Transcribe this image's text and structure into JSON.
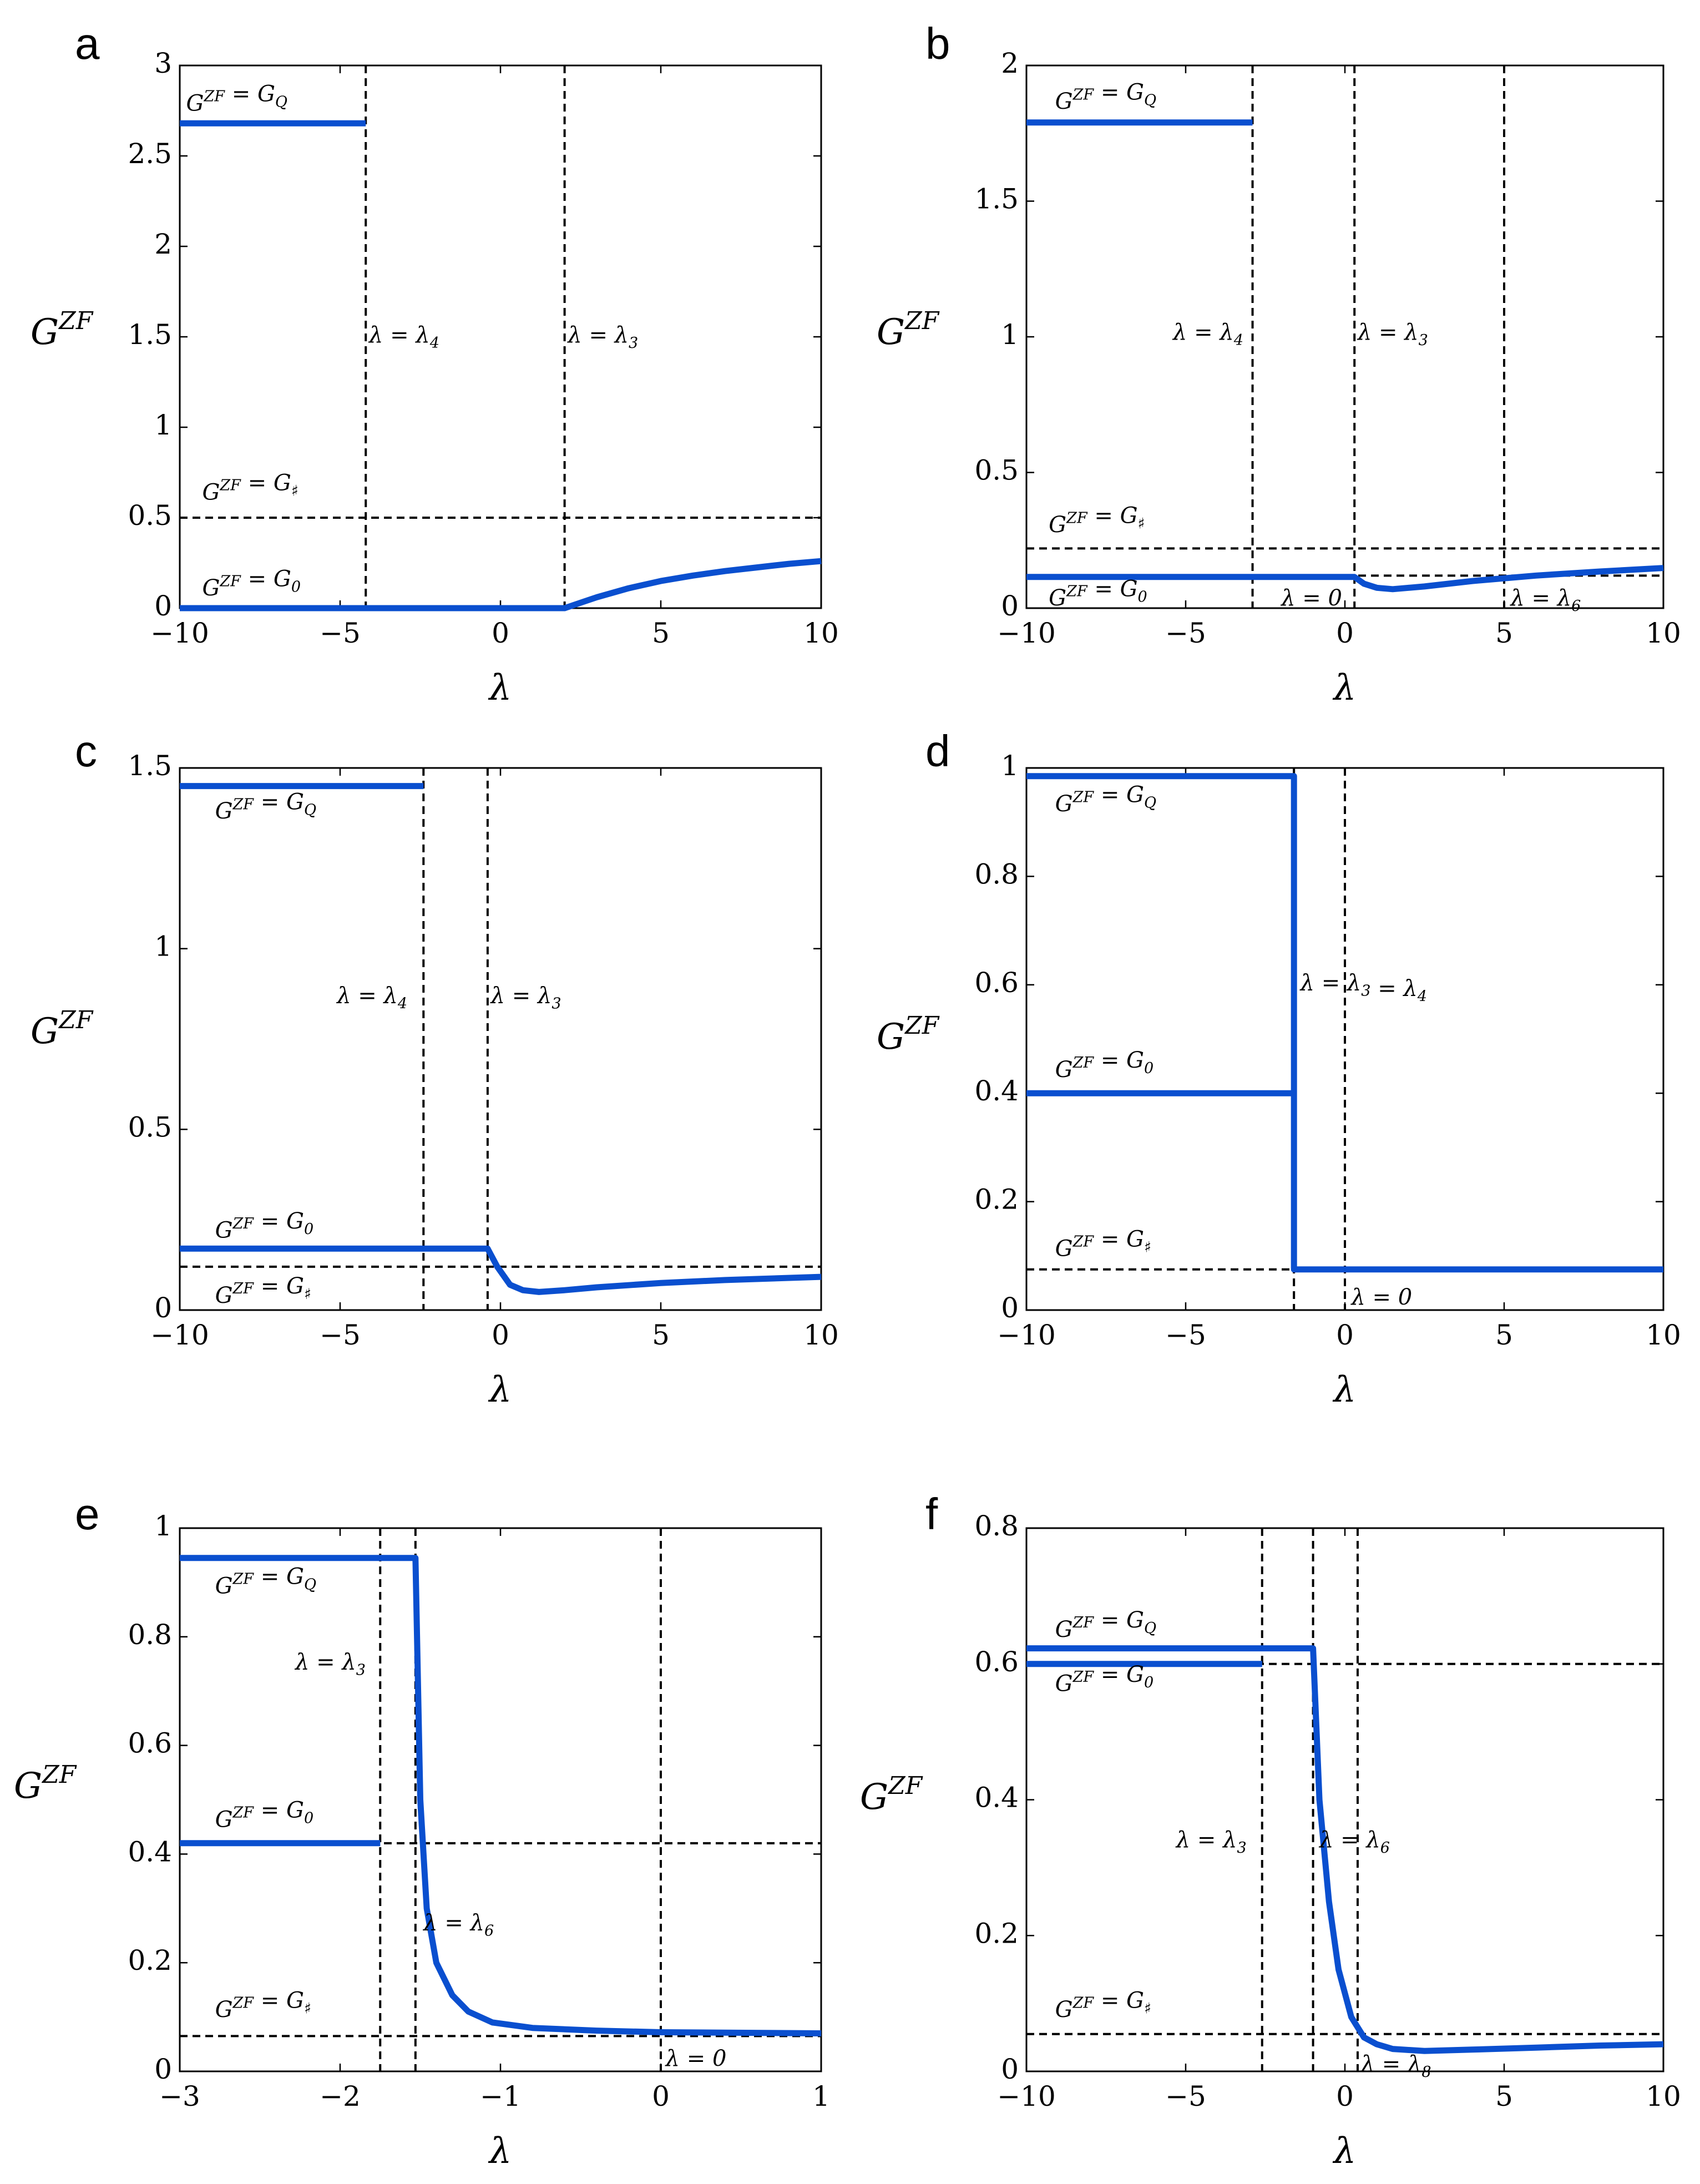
{
  "figure": {
    "accent_color": "#0a4fcf"
  },
  "chart_data": [
    {
      "panel": "a",
      "type": "line",
      "xlabel": "λ",
      "ylabel": "G^ZF",
      "xlim": [
        -10,
        10
      ],
      "ylim": [
        0,
        3
      ],
      "xticks": [
        -10,
        -5,
        0,
        5,
        10
      ],
      "yticks": [
        0,
        0.5,
        1,
        1.5,
        2,
        2.5,
        3
      ],
      "series": [
        {
          "points": [
            [
              -10,
              2.68
            ],
            [
              -4.2,
              2.68
            ]
          ]
        },
        {
          "points": [
            [
              -10,
              0
            ],
            [
              2,
              0
            ],
            [
              2.5,
              0.03
            ],
            [
              3,
              0.06
            ],
            [
              4,
              0.11
            ],
            [
              5,
              0.15
            ],
            [
              6,
              0.18
            ],
            [
              7,
              0.205
            ],
            [
              8,
              0.225
            ],
            [
              9,
              0.245
            ],
            [
              10,
              0.26
            ]
          ]
        }
      ],
      "hlines": [
        0.5
      ],
      "vlines": [
        -4.2,
        2
      ],
      "annotations": [
        {
          "text": "G^ZF = G_Q",
          "x": -9.8,
          "y": 2.75
        },
        {
          "text": "G^ZF = G_♯",
          "x": -9.3,
          "y": 0.6
        },
        {
          "text": "G^ZF = G_0",
          "x": -9.3,
          "y": 0.07
        },
        {
          "text": "λ = λ_4",
          "x": -4.1,
          "y": 1.47
        },
        {
          "text": "λ = λ_3",
          "x": 2.1,
          "y": 1.47
        }
      ]
    },
    {
      "panel": "b",
      "type": "line",
      "xlabel": "λ",
      "ylabel": "G^ZF",
      "xlim": [
        -10,
        10
      ],
      "ylim": [
        0,
        2
      ],
      "xticks": [
        -10,
        -5,
        0,
        5,
        10
      ],
      "yticks": [
        0,
        0.5,
        1,
        1.5,
        2
      ],
      "series": [
        {
          "points": [
            [
              -10,
              1.79
            ],
            [
              -2.9,
              1.79
            ]
          ]
        },
        {
          "points": [
            [
              -10,
              0.115
            ],
            [
              0.3,
              0.115
            ],
            [
              0.6,
              0.09
            ],
            [
              1,
              0.075
            ],
            [
              1.5,
              0.07
            ],
            [
              2.5,
              0.08
            ],
            [
              4,
              0.1
            ],
            [
              6,
              0.12
            ],
            [
              8,
              0.135
            ],
            [
              10,
              0.148
            ]
          ]
        }
      ],
      "hlines": [
        0.22,
        0.12
      ],
      "vlines": [
        -2.9,
        0.3,
        5
      ],
      "annotations": [
        {
          "text": "G^ZF = G_Q",
          "x": -9.1,
          "y": 1.84
        },
        {
          "text": "G^ZF = G_♯",
          "x": -9.3,
          "y": 0.28
        },
        {
          "text": "G^ZF = G_0",
          "x": -9.3,
          "y": 0.01
        },
        {
          "text": "λ = λ_4",
          "x": -5.4,
          "y": 0.99
        },
        {
          "text": "λ = λ_3",
          "x": 0.4,
          "y": 0.99
        },
        {
          "text": "λ = 0",
          "x": -2,
          "y": 0.01
        },
        {
          "text": "λ = λ_6",
          "x": 5.2,
          "y": 0.01
        }
      ]
    },
    {
      "panel": "c",
      "type": "line",
      "xlabel": "λ",
      "ylabel": "G^ZF",
      "xlim": [
        -10,
        10
      ],
      "ylim": [
        0,
        1.5
      ],
      "xticks": [
        -10,
        -5,
        0,
        5,
        10
      ],
      "yticks": [
        0,
        0.5,
        1,
        1.5
      ],
      "series": [
        {
          "points": [
            [
              -10,
              1.45
            ],
            [
              -2.4,
              1.45
            ]
          ]
        },
        {
          "points": [
            [
              -10,
              0.17
            ],
            [
              -0.4,
              0.17
            ],
            [
              -0.1,
              0.12
            ],
            [
              0.3,
              0.07
            ],
            [
              0.7,
              0.055
            ],
            [
              1.2,
              0.05
            ],
            [
              2,
              0.055
            ],
            [
              3,
              0.063
            ],
            [
              5,
              0.075
            ],
            [
              7,
              0.083
            ],
            [
              10,
              0.092
            ]
          ]
        }
      ],
      "hlines": [
        0.12
      ],
      "vlines": [
        -2.4,
        -0.4
      ],
      "annotations": [
        {
          "text": "G^ZF = G_Q",
          "x": -8.9,
          "y": 1.36
        },
        {
          "text": "G^ZF = G_0",
          "x": -8.9,
          "y": 0.2
        },
        {
          "text": "G^ZF = G_♯",
          "x": -8.9,
          "y": 0.02
        },
        {
          "text": "λ = λ_4",
          "x": -5.1,
          "y": 0.85
        },
        {
          "text": "λ = λ_3",
          "x": -0.3,
          "y": 0.85
        }
      ]
    },
    {
      "panel": "d",
      "type": "line",
      "xlabel": "λ",
      "ylabel": "G^ZF",
      "xlim": [
        -10,
        10
      ],
      "ylim": [
        0,
        1
      ],
      "xticks": [
        -10,
        -5,
        0,
        5,
        10
      ],
      "yticks": [
        0,
        0.2,
        0.4,
        0.6,
        0.8,
        1
      ],
      "series": [
        {
          "points": [
            [
              -10,
              0.985
            ],
            [
              -1.6,
              0.985
            ],
            [
              -1.6,
              0.075
            ],
            [
              10,
              0.075
            ]
          ]
        },
        {
          "points": [
            [
              -10,
              0.4
            ],
            [
              -1.6,
              0.4
            ]
          ]
        }
      ],
      "hlines": [
        0.075
      ],
      "vlines": [
        -1.6,
        0
      ],
      "annotations": [
        {
          "text": "G^ZF = G_Q",
          "x": -9.1,
          "y": 0.92
        },
        {
          "text": "λ = λ_3 = λ_4",
          "x": -1.4,
          "y": 0.59
        },
        {
          "text": "G^ZF = G_0",
          "x": -9.1,
          "y": 0.43
        },
        {
          "text": "G^ZF = G_♯",
          "x": -9.1,
          "y": 0.1
        },
        {
          "text": "λ = 0",
          "x": 0.2,
          "y": 0.01
        }
      ]
    },
    {
      "panel": "e",
      "type": "line",
      "xlabel": "λ",
      "ylabel": "G^ZF",
      "xlim": [
        -3,
        1
      ],
      "ylim": [
        0,
        1
      ],
      "xticks": [
        -3,
        -2,
        -1,
        0,
        1
      ],
      "yticks": [
        0,
        0.2,
        0.4,
        0.6,
        0.8,
        1
      ],
      "series": [
        {
          "points": [
            [
              -3,
              0.945
            ],
            [
              -1.53,
              0.945
            ],
            [
              -1.5,
              0.5
            ],
            [
              -1.46,
              0.3
            ],
            [
              -1.4,
              0.2
            ],
            [
              -1.3,
              0.14
            ],
            [
              -1.2,
              0.11
            ],
            [
              -1.05,
              0.09
            ],
            [
              -0.8,
              0.08
            ],
            [
              -0.4,
              0.075
            ],
            [
              0,
              0.072
            ],
            [
              1,
              0.07
            ]
          ]
        },
        {
          "points": [
            [
              -3,
              0.42
            ],
            [
              -1.75,
              0.42
            ]
          ]
        }
      ],
      "hlines": [
        0.42,
        0.065
      ],
      "vlines": [
        -1.75,
        -1.53,
        0
      ],
      "annotations": [
        {
          "text": "G^ZF = G_Q",
          "x": -2.78,
          "y": 0.88
        },
        {
          "text": "λ = λ_3",
          "x": -2.28,
          "y": 0.74
        },
        {
          "text": "G^ZF = G_0",
          "x": -2.78,
          "y": 0.45
        },
        {
          "text": "λ = λ_6",
          "x": -1.48,
          "y": 0.26
        },
        {
          "text": "G^ZF = G_♯",
          "x": -2.78,
          "y": 0.1
        },
        {
          "text": "λ = 0",
          "x": 0.03,
          "y": 0.01
        }
      ]
    },
    {
      "panel": "f",
      "type": "line",
      "xlabel": "λ",
      "ylabel": "G^ZF",
      "xlim": [
        -10,
        10
      ],
      "ylim": [
        0,
        0.8
      ],
      "xticks": [
        -10,
        -5,
        0,
        5,
        10
      ],
      "yticks": [
        0,
        0.2,
        0.4,
        0.6,
        0.8
      ],
      "series": [
        {
          "points": [
            [
              -10,
              0.623
            ],
            [
              -1,
              0.623
            ],
            [
              -0.8,
              0.4
            ],
            [
              -0.5,
              0.25
            ],
            [
              -0.2,
              0.15
            ],
            [
              0.2,
              0.08
            ],
            [
              0.6,
              0.05
            ],
            [
              1,
              0.04
            ],
            [
              1.5,
              0.033
            ],
            [
              2.5,
              0.03
            ],
            [
              4,
              0.032
            ],
            [
              6,
              0.035
            ],
            [
              8,
              0.038
            ],
            [
              10,
              0.04
            ]
          ]
        },
        {
          "points": [
            [
              -10,
              0.6
            ],
            [
              -2.6,
              0.6
            ]
          ]
        }
      ],
      "hlines": [
        0.6,
        0.055
      ],
      "vlines": [
        -2.6,
        -1,
        0.4
      ],
      "annotations": [
        {
          "text": "G^ZF = G_Q",
          "x": -9.1,
          "y": 0.64
        },
        {
          "text": "G^ZF = G_0",
          "x": -9.1,
          "y": 0.56
        },
        {
          "text": "λ = λ_3",
          "x": -5.3,
          "y": 0.33
        },
        {
          "text": "λ = λ_6",
          "x": -0.8,
          "y": 0.33
        },
        {
          "text": "G^ZF = G_♯",
          "x": -9.1,
          "y": 0.08
        },
        {
          "text": "λ = λ_8",
          "x": 0.5,
          "y": 0.0
        }
      ]
    }
  ]
}
